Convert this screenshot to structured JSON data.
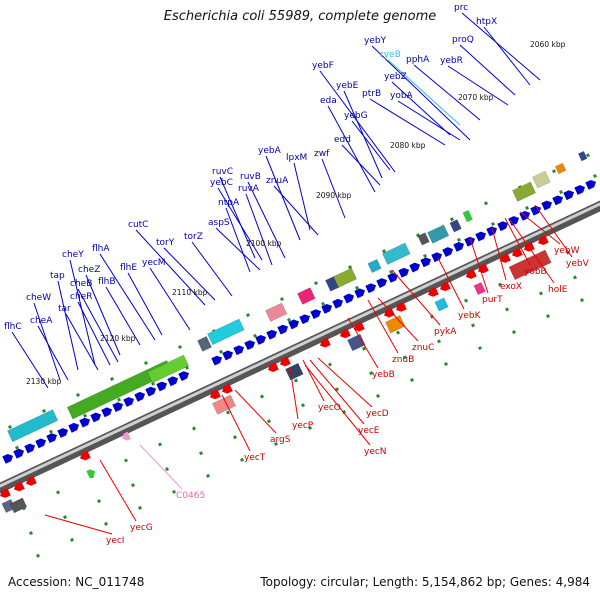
{
  "title": "Escherichia coli 55989, complete genome",
  "footer": {
    "accession": "Accession: NC_011748",
    "summary": "Topology: circular; Length: 5,154,862 bp; Genes: 4,984"
  },
  "colors": {
    "forward": "#0000cc",
    "reverse": "#ee0000",
    "rna": "#33bbee",
    "pseudo": "#ee99cc"
  },
  "kbp_labels": [
    "2060 kbp",
    "2070 kbp",
    "2080 kbp",
    "2090 kbp",
    "2100 kbp",
    "2110 kbp",
    "2120 kbp",
    "2130 kbp"
  ],
  "upper_genes": [
    {
      "name": "prc",
      "type": "forward"
    },
    {
      "name": "htpX",
      "type": "forward"
    },
    {
      "name": "yebY",
      "type": "forward"
    },
    {
      "name": "ryeB",
      "type": "rna"
    },
    {
      "name": "proQ",
      "type": "forward"
    },
    {
      "name": "yebF",
      "type": "forward"
    },
    {
      "name": "pphA",
      "type": "forward"
    },
    {
      "name": "yebR",
      "type": "forward"
    },
    {
      "name": "yebZ",
      "type": "forward"
    },
    {
      "name": "yebE",
      "type": "forward"
    },
    {
      "name": "ptrB",
      "type": "forward"
    },
    {
      "name": "eda",
      "type": "forward"
    },
    {
      "name": "yobA",
      "type": "forward"
    },
    {
      "name": "yebG",
      "type": "forward"
    },
    {
      "name": "yebA",
      "type": "forward"
    },
    {
      "name": "lpxM",
      "type": "forward"
    },
    {
      "name": "edd",
      "type": "forward"
    },
    {
      "name": "zwf",
      "type": "forward"
    },
    {
      "name": "ruvC",
      "type": "forward"
    },
    {
      "name": "ruvB",
      "type": "forward"
    },
    {
      "name": "yebC",
      "type": "forward"
    },
    {
      "name": "znuA",
      "type": "forward"
    },
    {
      "name": "ruvA",
      "type": "forward"
    },
    {
      "name": "ntpA",
      "type": "forward"
    },
    {
      "name": "cutC",
      "type": "forward"
    },
    {
      "name": "aspS",
      "type": "forward"
    },
    {
      "name": "torY",
      "type": "forward"
    },
    {
      "name": "torZ",
      "type": "forward"
    },
    {
      "name": "cheY",
      "type": "forward"
    },
    {
      "name": "flhA",
      "type": "forward"
    },
    {
      "name": "cheZ",
      "type": "forward"
    },
    {
      "name": "yecM",
      "type": "forward"
    },
    {
      "name": "flhE",
      "type": "forward"
    },
    {
      "name": "tap",
      "type": "forward"
    },
    {
      "name": "cheB",
      "type": "forward"
    },
    {
      "name": "flhB",
      "type": "forward"
    },
    {
      "name": "cheW",
      "type": "forward"
    },
    {
      "name": "cheR",
      "type": "forward"
    },
    {
      "name": "tar",
      "type": "forward"
    },
    {
      "name": "cheA",
      "type": "forward"
    },
    {
      "name": "flhC",
      "type": "forward"
    }
  ],
  "lower_genes": [
    {
      "name": "yebW",
      "type": "reverse"
    },
    {
      "name": "yebV",
      "type": "reverse"
    },
    {
      "name": "yobB",
      "type": "reverse"
    },
    {
      "name": "exoX",
      "type": "reverse"
    },
    {
      "name": "holE",
      "type": "reverse"
    },
    {
      "name": "purT",
      "type": "reverse"
    },
    {
      "name": "yebK",
      "type": "reverse"
    },
    {
      "name": "pykA",
      "type": "reverse"
    },
    {
      "name": "znuC",
      "type": "reverse"
    },
    {
      "name": "znuB",
      "type": "reverse"
    },
    {
      "name": "yebB",
      "type": "reverse"
    },
    {
      "name": "yecD",
      "type": "reverse"
    },
    {
      "name": "yecO",
      "type": "reverse"
    },
    {
      "name": "yecE",
      "type": "reverse"
    },
    {
      "name": "yecP",
      "type": "reverse"
    },
    {
      "name": "yecN",
      "type": "reverse"
    },
    {
      "name": "argS",
      "type": "reverse"
    },
    {
      "name": "yecT",
      "type": "reverse"
    },
    {
      "name": "C0465",
      "type": "pseudo"
    },
    {
      "name": "yecG",
      "type": "reverse"
    },
    {
      "name": "yecI",
      "type": "reverse"
    }
  ]
}
